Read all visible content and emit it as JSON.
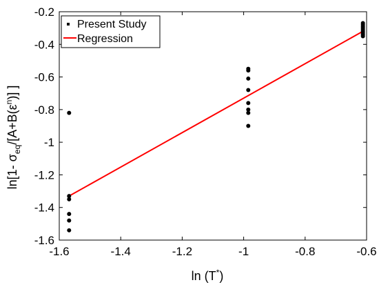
{
  "chart_data": {
    "type": "scatter",
    "xlim": [
      -1.6,
      -0.6
    ],
    "ylim": [
      -1.6,
      -0.2
    ],
    "xticks": [
      -1.6,
      -1.4,
      -1.2,
      -1,
      -0.8,
      -0.6
    ],
    "yticks": [
      -1.6,
      -1.4,
      -1.2,
      -1,
      -0.8,
      -0.6,
      -0.4,
      -0.2
    ],
    "xtick_labels": [
      "-1.6",
      "-1.4",
      "-1.2",
      "-1",
      "-0.8",
      "-0.6"
    ],
    "ytick_labels": [
      "-1.6",
      "-1.4",
      "-1.2",
      "-1",
      "-0.8",
      "-0.6",
      "-0.4",
      "-0.2"
    ],
    "grid": false,
    "legend_position": "top-left",
    "series": [
      {
        "name": "Present Study",
        "kind": "scatter",
        "color": "#000000",
        "points": [
          {
            "x": -1.568,
            "y": -0.82
          },
          {
            "x": -1.568,
            "y": -1.33
          },
          {
            "x": -1.568,
            "y": -1.35
          },
          {
            "x": -1.568,
            "y": -1.44
          },
          {
            "x": -1.568,
            "y": -1.48
          },
          {
            "x": -1.568,
            "y": -1.54
          },
          {
            "x": -0.985,
            "y": -0.55
          },
          {
            "x": -0.985,
            "y": -0.56
          },
          {
            "x": -0.985,
            "y": -0.61
          },
          {
            "x": -0.985,
            "y": -0.68
          },
          {
            "x": -0.985,
            "y": -0.76
          },
          {
            "x": -0.985,
            "y": -0.8
          },
          {
            "x": -0.985,
            "y": -0.82
          },
          {
            "x": -0.985,
            "y": -0.9
          },
          {
            "x": -0.612,
            "y": -0.27
          },
          {
            "x": -0.612,
            "y": -0.28
          },
          {
            "x": -0.612,
            "y": -0.29
          },
          {
            "x": -0.612,
            "y": -0.3
          },
          {
            "x": -0.612,
            "y": -0.31
          },
          {
            "x": -0.612,
            "y": -0.32
          },
          {
            "x": -0.612,
            "y": -0.33
          },
          {
            "x": -0.612,
            "y": -0.34
          },
          {
            "x": -0.612,
            "y": -0.35
          }
        ]
      },
      {
        "name": "Regression",
        "kind": "line",
        "color": "#ff0000",
        "x": [
          -1.568,
          -0.612
        ],
        "y": [
          -1.33,
          -0.32
        ]
      }
    ]
  }
}
